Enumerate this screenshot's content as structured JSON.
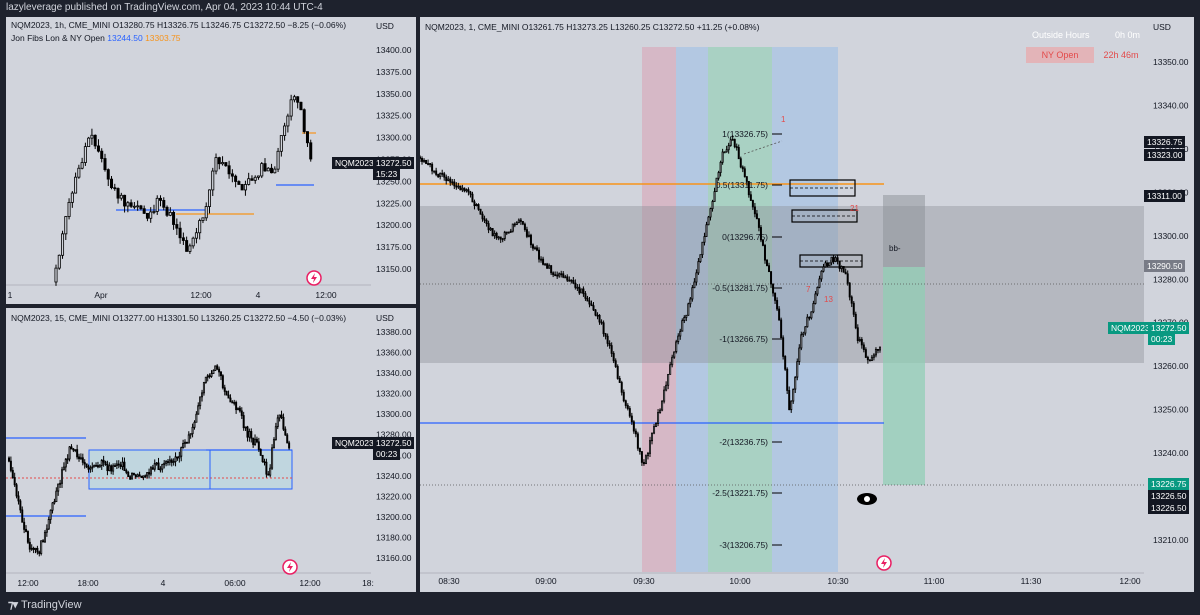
{
  "header": {
    "title": "lazyleverage published on TradingView.com, Apr 04, 2023 10:44 UTC-4"
  },
  "footer": {
    "brand": "TradingView"
  },
  "colors": {
    "accent": "#2962ff",
    "orange": "#f7931a",
    "teal": "#089981",
    "background": "#d1d4dc"
  },
  "pane1": {
    "ohlc": "NQM2023, 1h, CME_MINI  O13280.75  H13326.75  L13246.75  C13272.50  −8.25 (−0.06%)",
    "indicator": "Jon Fibs Lon & NY Open",
    "indicator_v1": "13244.50",
    "indicator_v2": "13303.75",
    "currency": "USD",
    "price_labels": [
      "13400.00",
      "13375.00",
      "13350.00",
      "13325.00",
      "13300.00",
      "13275.00",
      "13250.00",
      "13225.00",
      "13200.00",
      "13175.00",
      "13150.00"
    ],
    "time_labels": [
      "1",
      "Apr",
      "12:00",
      "4",
      "12:00"
    ],
    "symbol_tag": "NQM2023",
    "price_tag": "13272.50",
    "countdown": "15:23",
    "chart_data": {
      "type": "candlestick",
      "symbol": "NQM2023",
      "interval": "1h",
      "ylim": [
        13130,
        13410
      ],
      "lines": [
        {
          "name": "Jon Fibs value 1",
          "value": 13244.5
        },
        {
          "name": "Jon Fibs value 2",
          "value": 13303.75
        }
      ],
      "last_price": 13272.5
    }
  },
  "pane2": {
    "ohlc": "NQM2023, 15, CME_MINI  O13277.00  H13301.50  L13260.25  C13272.50  −4.50 (−0.03%)",
    "currency": "USD",
    "price_labels": [
      "13380.00",
      "13360.00",
      "13340.00",
      "13320.00",
      "13300.00",
      "13280.00",
      "13260.00",
      "13240.00",
      "13220.00",
      "13200.00",
      "13180.00",
      "13160.00"
    ],
    "time_labels": [
      "12:00",
      "18:00",
      "4",
      "06:00",
      "12:00",
      "18:"
    ],
    "symbol_tag": "NQM2023",
    "price_tag": "13272.50",
    "countdown": "00:23",
    "chart_data": {
      "type": "candlestick",
      "symbol": "NQM2023",
      "interval": "15",
      "ylim": [
        13150,
        13392
      ],
      "last_price": 13272.5
    }
  },
  "pane3": {
    "ohlc": "NQM2023, 1, CME_MINI  O13261.75  H13273.25  L13260.25  C13272.50  +11.25 (+0.08%)",
    "currency": "USD",
    "session_header": "Outside Hours",
    "session_header_value": "0h 0m",
    "session_name": "NY Open",
    "session_time": "22h 46m",
    "price_labels": [
      "13350.00",
      "13340.00",
      "13330.00",
      "13320.00",
      "13300.00",
      "13280.00",
      "13270.00",
      "13260.00",
      "13250.00",
      "13240.00",
      "13230.00",
      "13210.00"
    ],
    "time_labels": [
      "08:30",
      "09:00",
      "09:30",
      "10:00",
      "10:30",
      "11:00",
      "11:30",
      "12:00"
    ],
    "fib_labels": [
      "1(13326.75)",
      "0.5(13311.75)",
      "0(13296.75)",
      "-0.5(13281.75)",
      "-1(13266.75)",
      "-2(13236.75)",
      "-2.5(13221.75)",
      "-3(13206.75)"
    ],
    "markers": [
      "1",
      "21",
      "7",
      "13",
      "bb-"
    ],
    "right_tags": [
      "13326.75",
      "13323.00",
      "13311.00",
      "13290.50",
      "13226.75",
      "13226.50",
      "13226.50"
    ],
    "symbol_tag": "NQM2023",
    "price_tag": "13272.50",
    "countdown": "00:23",
    "chart_data": {
      "type": "candlestick",
      "symbol": "NQM2023",
      "interval": "1",
      "ylim": [
        13200,
        13362
      ],
      "fib_levels": [
        {
          "label": "1",
          "value": 13326.75
        },
        {
          "label": "0.5",
          "value": 13311.75
        },
        {
          "label": "0",
          "value": 13296.75
        },
        {
          "label": "-0.5",
          "value": 13281.75
        },
        {
          "label": "-1",
          "value": 13266.75
        },
        {
          "label": "-2",
          "value": 13236.75
        },
        {
          "label": "-2.5",
          "value": 13221.75
        },
        {
          "label": "-3",
          "value": 13206.75
        }
      ],
      "last_price": 13272.5
    }
  }
}
